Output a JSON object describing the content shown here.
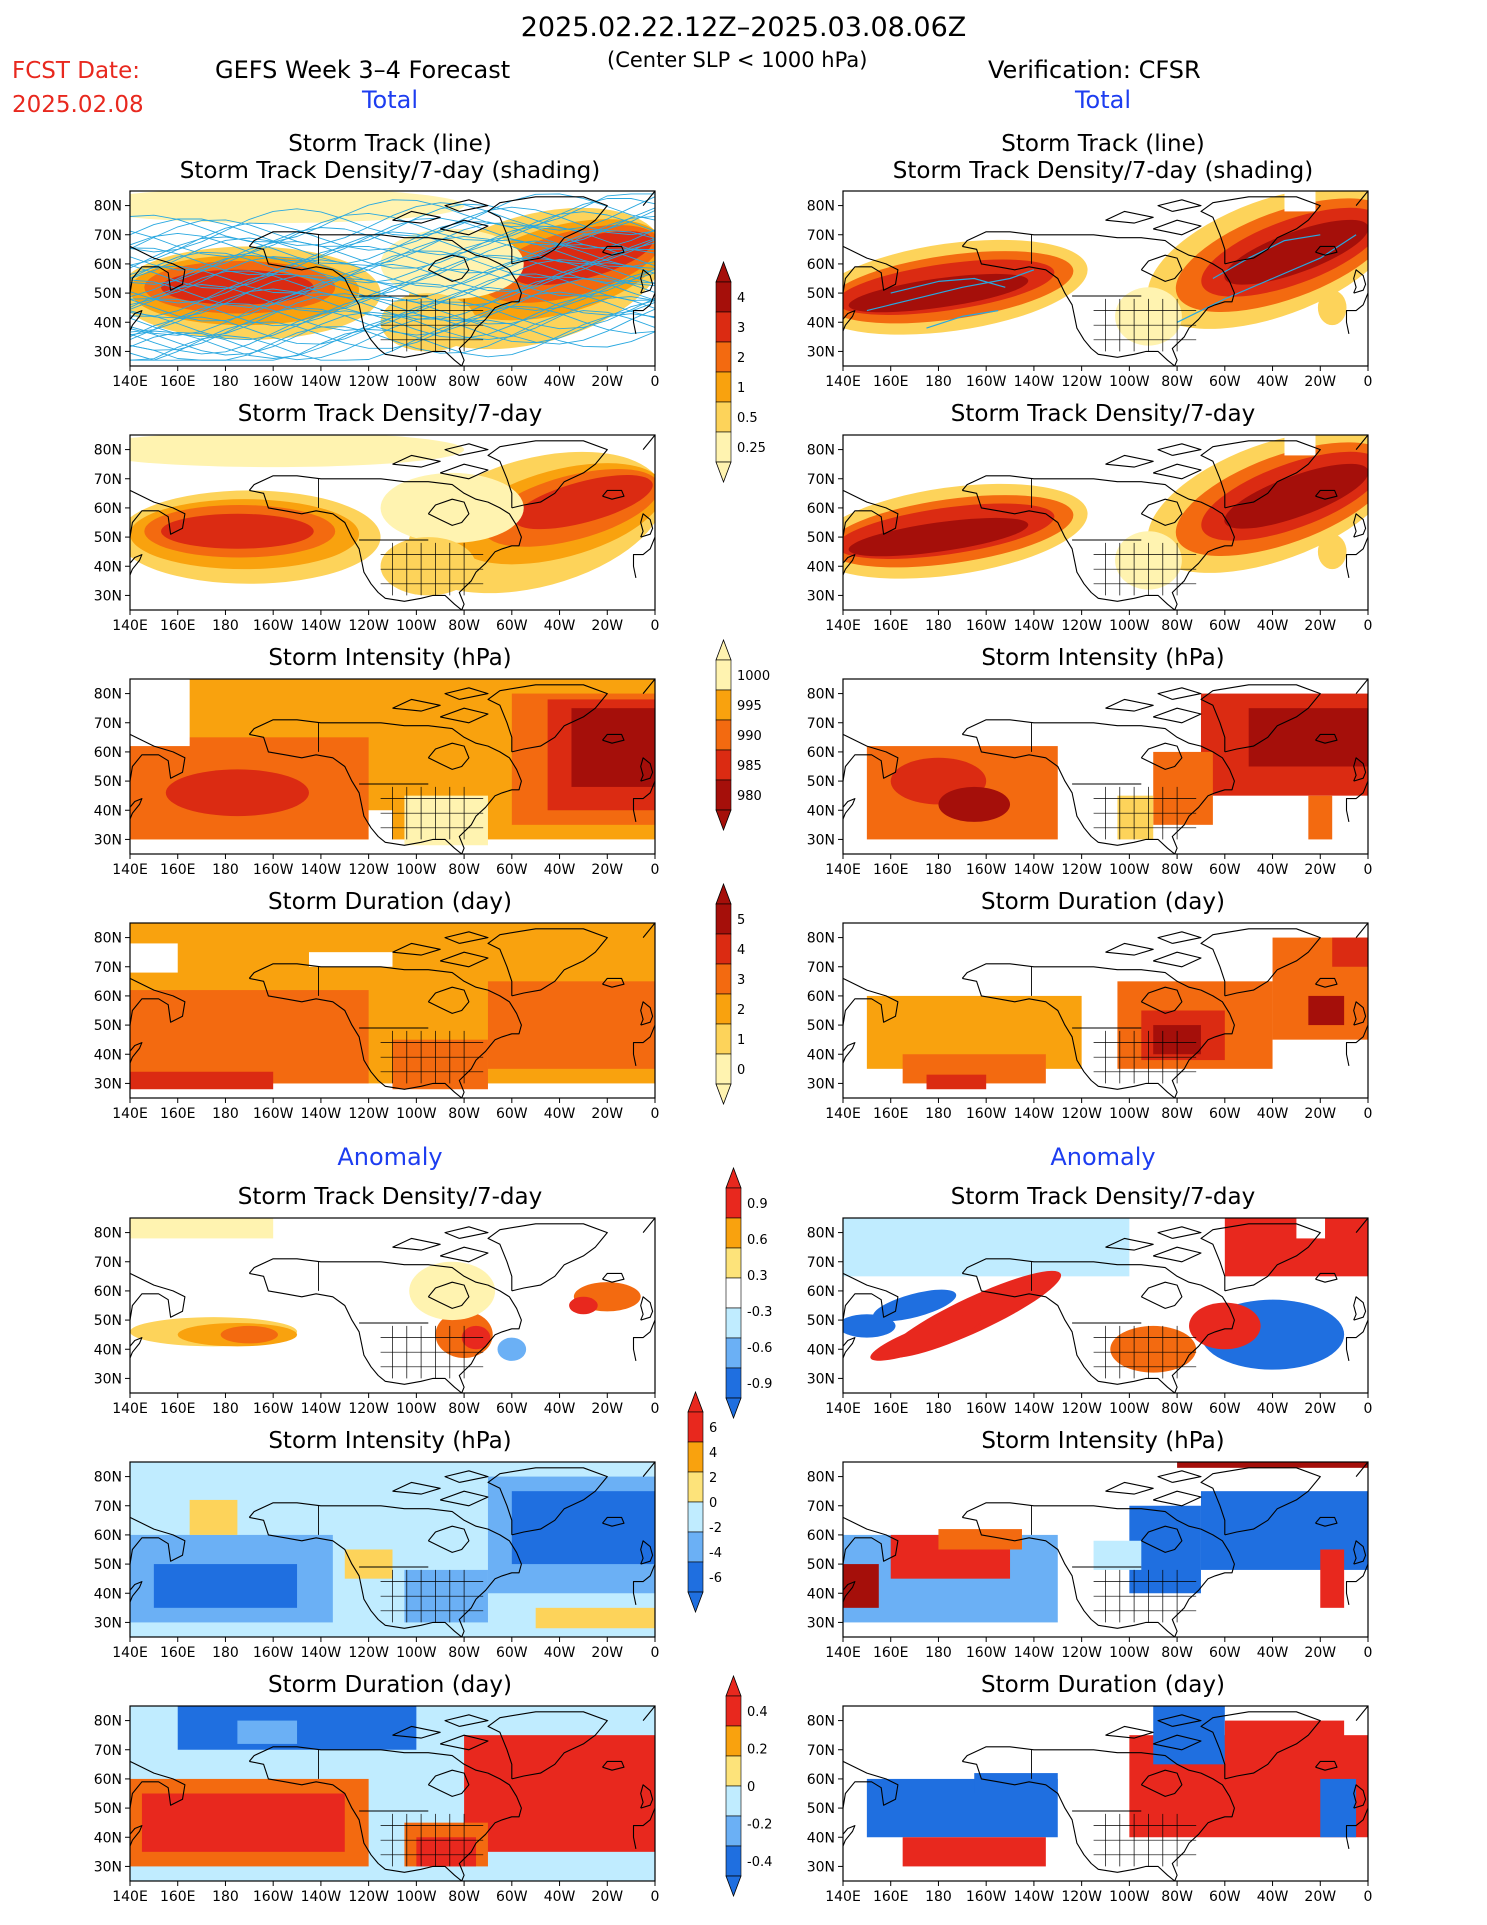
{
  "header": {
    "title": "2025.02.22.12Z–2025.03.08.06Z",
    "fcst_label": "FCST Date:",
    "fcst_date": "2025.02.08",
    "left_model": "GEFS Week 3–4 Forecast",
    "slp_note": "(Center SLP < 1000 hPa)",
    "right_model": "Verification: CFSR"
  },
  "sections": {
    "total": "Total",
    "anomaly": "Anomaly"
  },
  "axes": {
    "lat_labels": [
      "80N",
      "70N",
      "60N",
      "50N",
      "40N",
      "30N"
    ],
    "lon_labels": [
      "140E",
      "160E",
      "180",
      "160W",
      "140W",
      "120W",
      "100W",
      "80W",
      "60W",
      "40W",
      "20W",
      "0"
    ]
  },
  "panels": [
    {
      "id": "track-forecast",
      "title": [
        "Storm Track (line)",
        "Storm Track Density/7-day (shading)"
      ]
    },
    {
      "id": "track-verif",
      "title": [
        "Storm Track (line)",
        "Storm Track Density/7-day (shading)"
      ]
    },
    {
      "id": "density-forecast",
      "title": [
        "Storm Track Density/7-day"
      ]
    },
    {
      "id": "density-verif",
      "title": [
        "Storm Track Density/7-day"
      ]
    },
    {
      "id": "intensity-forecast",
      "title": [
        "Storm Intensity (hPa)"
      ]
    },
    {
      "id": "intensity-verif",
      "title": [
        "Storm Intensity (hPa)"
      ]
    },
    {
      "id": "duration-forecast",
      "title": [
        "Storm Duration (day)"
      ]
    },
    {
      "id": "duration-verif",
      "title": [
        "Storm Duration (day)"
      ]
    },
    {
      "id": "density-anom-forecast",
      "title": [
        "Storm Track Density/7-day"
      ]
    },
    {
      "id": "density-anom-verif",
      "title": [
        "Storm Track Density/7-day"
      ]
    },
    {
      "id": "intensity-anom-forecast",
      "title": [
        "Storm Intensity (hPa)"
      ]
    },
    {
      "id": "intensity-anom-verif",
      "title": [
        "Storm Intensity (hPa)"
      ]
    },
    {
      "id": "duration-anom-forecast",
      "title": [
        "Storm Duration (day)"
      ]
    },
    {
      "id": "duration-anom-verif",
      "title": [
        "Storm Duration (day)"
      ]
    }
  ],
  "colorbars": [
    {
      "id": "density",
      "labels": [
        "4",
        "3",
        "2",
        "1",
        "0.5",
        "0.25"
      ],
      "colors": [
        "#a50f0a",
        "#db2b12",
        "#f36a10",
        "#f9a20e",
        "#fdd35a",
        "#fff3b0"
      ]
    },
    {
      "id": "intensity",
      "labels": [
        "1000",
        "995",
        "990",
        "985",
        "980"
      ],
      "colors": [
        "#fff3b0",
        "#f9a20e",
        "#f36a10",
        "#db2b12",
        "#a50f0a"
      ]
    },
    {
      "id": "duration",
      "labels": [
        "5",
        "4",
        "3",
        "2",
        "1",
        "0"
      ],
      "colors": [
        "#a50f0a",
        "#db2b12",
        "#f36a10",
        "#f9a20e",
        "#fdd35a",
        "#fff3b0"
      ]
    },
    {
      "id": "density-anom",
      "labels": [
        "0.9",
        "0.6",
        "0.3",
        "-0.3",
        "-0.6",
        "-0.9"
      ],
      "colors": [
        "#e8281e",
        "#f9a20e",
        "#fde37a",
        "#ffffff",
        "#c0ecff",
        "#6bb0f5",
        "#1f6fe0"
      ]
    },
    {
      "id": "intensity-anom",
      "labels": [
        "6",
        "4",
        "2",
        "0",
        "-2",
        "-4",
        "-6"
      ],
      "colors": [
        "#e8281e",
        "#f9a20e",
        "#fde37a",
        "#c0ecff",
        "#6bb0f5",
        "#1f6fe0"
      ]
    },
    {
      "id": "duration-anom",
      "labels": [
        "0.4",
        "0.2",
        "0",
        "-0.2",
        "-0.4"
      ],
      "colors": [
        "#e8281e",
        "#f9a20e",
        "#fde37a",
        "#c0ecff",
        "#6bb0f5",
        "#1f6fe0"
      ]
    }
  ],
  "colors": {
    "title_red": "#e8281e",
    "section_blue": "#1d3df0",
    "track_line": "#29a8e0",
    "dark_red": "#a50f0a",
    "red": "#db2b12",
    "orange": "#f36a10",
    "light_orange": "#f9a20e",
    "yellow": "#fdd35a",
    "pale_yellow": "#fff3b0",
    "anom_red": "#e8281e",
    "anom_light_blue": "#c0ecff",
    "anom_mid_blue": "#6bb0f5",
    "anom_blue": "#1f6fe0"
  }
}
